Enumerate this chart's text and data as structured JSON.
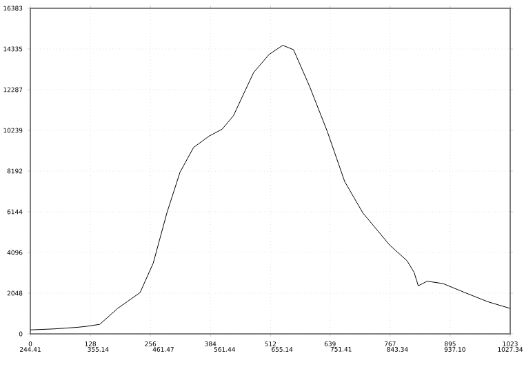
{
  "chart_data": {
    "type": "line",
    "x": [
      0,
      50,
      100,
      120,
      148,
      186,
      234,
      262,
      291,
      319,
      348,
      381,
      409,
      433,
      476,
      509,
      538,
      561,
      595,
      633,
      670,
      709,
      766,
      803,
      818,
      827,
      846,
      880,
      926,
      975,
      1023
    ],
    "series": [
      {
        "color": "#000000",
        "values": [
          200,
          250,
          330,
          380,
          480,
          1280,
          2080,
          3560,
          6080,
          8130,
          9380,
          9950,
          10300,
          10980,
          13150,
          14060,
          14520,
          14300,
          12470,
          10190,
          7670,
          6080,
          4470,
          3680,
          3100,
          2420,
          2650,
          2530,
          2080,
          1620,
          1280
        ]
      }
    ],
    "xlim": [
      0,
      1023
    ],
    "ylim": [
      0,
      16383
    ],
    "xticks": [
      0,
      128,
      256,
      384,
      512,
      639,
      767,
      895,
      1023
    ],
    "x2lim": [
      244.41,
      1027.34
    ],
    "x2ticks": [
      244.41,
      355.14,
      461.47,
      561.44,
      655.14,
      751.41,
      843.34,
      {
        "value": 937.1,
        "label": "937.10"
      },
      1027.34
    ],
    "yticks": [
      0,
      2048,
      4096,
      6144,
      8192,
      10239,
      12287,
      14335,
      16383
    ],
    "grid": true,
    "marker": "none",
    "line_style": "solid"
  }
}
